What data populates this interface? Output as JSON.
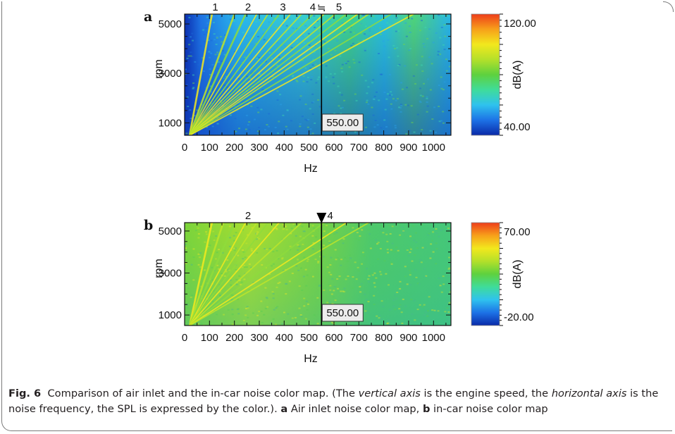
{
  "figure": {
    "caption": {
      "label": "Fig. 6",
      "text_1": "Comparison of air inlet and the in-car noise color map. (The ",
      "em_1": "vertical axis",
      "text_2": " is the engine speed, the ",
      "em_2": "horizontal axis",
      "text_3": " is the noise frequency, the SPL is expressed by the color.). ",
      "a_label": "a",
      "a_text": " Air inlet noise color map, ",
      "b_label": "b",
      "b_text": " in-car noise color map"
    }
  },
  "chart_data": [
    {
      "type": "heatmap",
      "panel_label": "a",
      "xlabel": "Hz",
      "ylabel": "rpm",
      "x_ticks": [
        0,
        100,
        200,
        300,
        400,
        500,
        600,
        700,
        800,
        900,
        1000
      ],
      "y_ticks": [
        1000,
        3000,
        5000
      ],
      "xlim": [
        0,
        1070
      ],
      "ylim": [
        500,
        5400
      ],
      "order_labels": [
        "1",
        "2",
        "3",
        "4",
        "5"
      ],
      "order_label_x": [
        123,
        255,
        395,
        515,
        620
      ],
      "order_symbol": "≒",
      "cursor": {
        "x": 550.0,
        "label": "550.00"
      },
      "colorbar": {
        "label": "dB(A)",
        "max": "120.00",
        "min": "40.00"
      },
      "colors": [
        "#0a2aa8",
        "#1d72e6",
        "#2fc2ee",
        "#3fdc9a",
        "#5ed13e",
        "#b4e02a",
        "#f2e81d",
        "#f7a01a",
        "#ee3d1a"
      ]
    },
    {
      "type": "heatmap",
      "panel_label": "b",
      "xlabel": "Hz",
      "ylabel": "rpm",
      "x_ticks": [
        0,
        100,
        200,
        300,
        400,
        500,
        600,
        700,
        800,
        900,
        1000
      ],
      "y_ticks": [
        1000,
        3000,
        5000
      ],
      "xlim": [
        0,
        1070
      ],
      "ylim": [
        500,
        5400
      ],
      "order_labels": [
        "2",
        "4"
      ],
      "order_label_x": [
        255,
        585
      ],
      "order_symbol": "▼",
      "cursor": {
        "x": 550.0,
        "label": "550.00"
      },
      "colorbar": {
        "label": "dB(A)",
        "max": "70.00",
        "min": "-20.00"
      },
      "colors": [
        "#0a2aa8",
        "#1d72e6",
        "#2fc2ee",
        "#3fdc9a",
        "#5ed13e",
        "#b4e02a",
        "#f2e81d",
        "#f7a01a",
        "#ee3d1a"
      ]
    }
  ]
}
